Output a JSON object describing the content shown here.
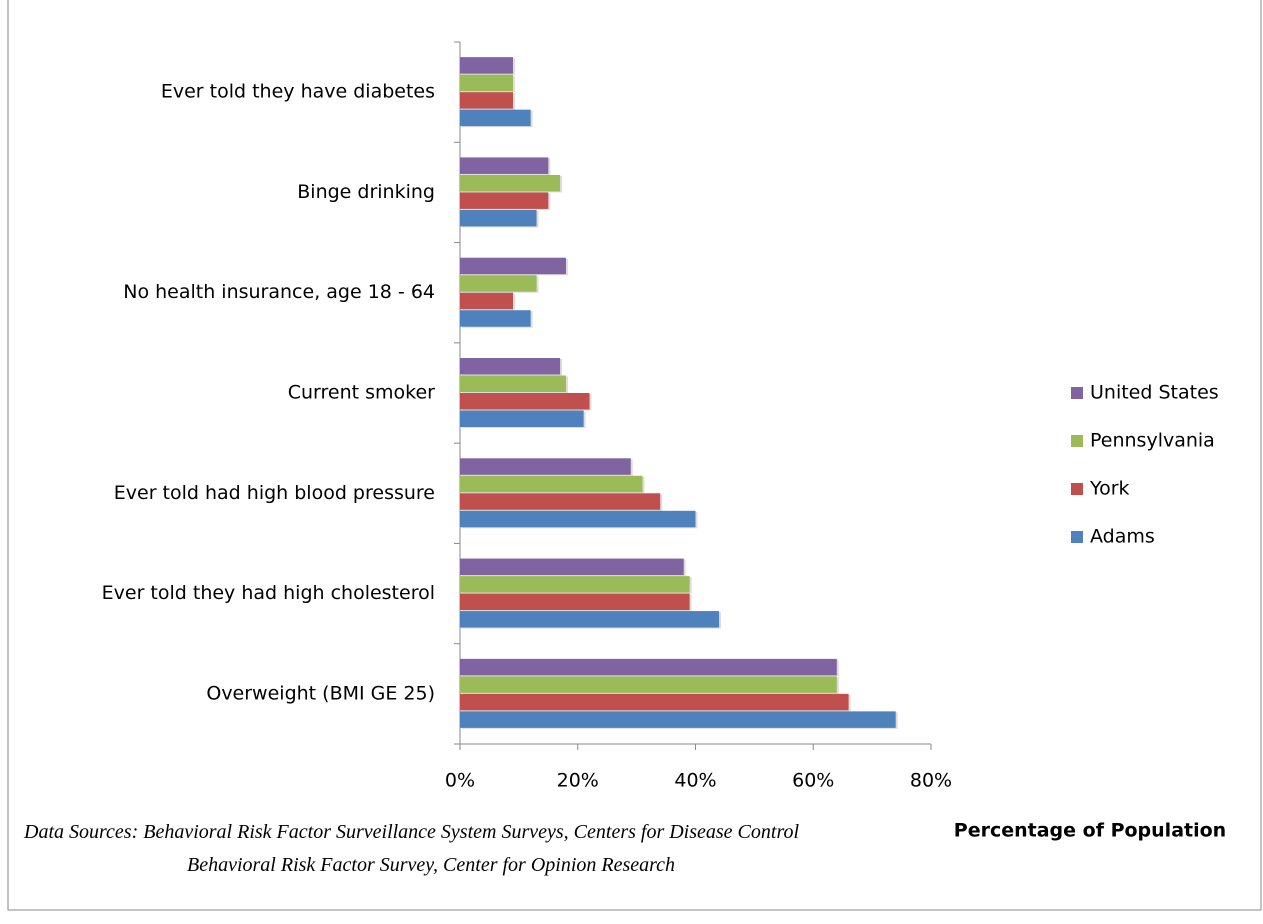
{
  "chart_data": {
    "type": "bar",
    "orientation": "horizontal",
    "categories": [
      "Ever told they have diabetes",
      "Binge drinking",
      "No health insurance, age 18 - 64",
      "Current smoker",
      "Ever told had high blood pressure",
      "Ever told they had high cholesterol",
      "Overweight (BMI GE 25)"
    ],
    "series": [
      {
        "name": "United States",
        "color": "#8064a2",
        "values": [
          9,
          15,
          18,
          17,
          29,
          38,
          64
        ]
      },
      {
        "name": "Pennsylvania",
        "color": "#9bbb59",
        "values": [
          9,
          17,
          13,
          18,
          31,
          39,
          64
        ]
      },
      {
        "name": "York",
        "color": "#c0504d",
        "values": [
          9,
          15,
          9,
          22,
          34,
          39,
          66
        ]
      },
      {
        "name": "Adams",
        "color": "#4f81bd",
        "values": [
          12,
          13,
          12,
          21,
          40,
          44,
          74
        ]
      }
    ],
    "xlim": [
      0,
      80
    ],
    "xticks": [
      {
        "value": 0,
        "label": "0%"
      },
      {
        "value": 20,
        "label": "20%"
      },
      {
        "value": 40,
        "label": "40%"
      },
      {
        "value": 60,
        "label": "60%"
      },
      {
        "value": 80,
        "label": "80%"
      }
    ],
    "xlabel": "Percentage of Population",
    "legend": "right",
    "notes": [
      "Data Sources: Behavioral Risk Factor Surveillance System Surveys, Centers for Disease Control",
      "Behavioral Risk Factor Survey, Center for Opinion Research"
    ]
  }
}
